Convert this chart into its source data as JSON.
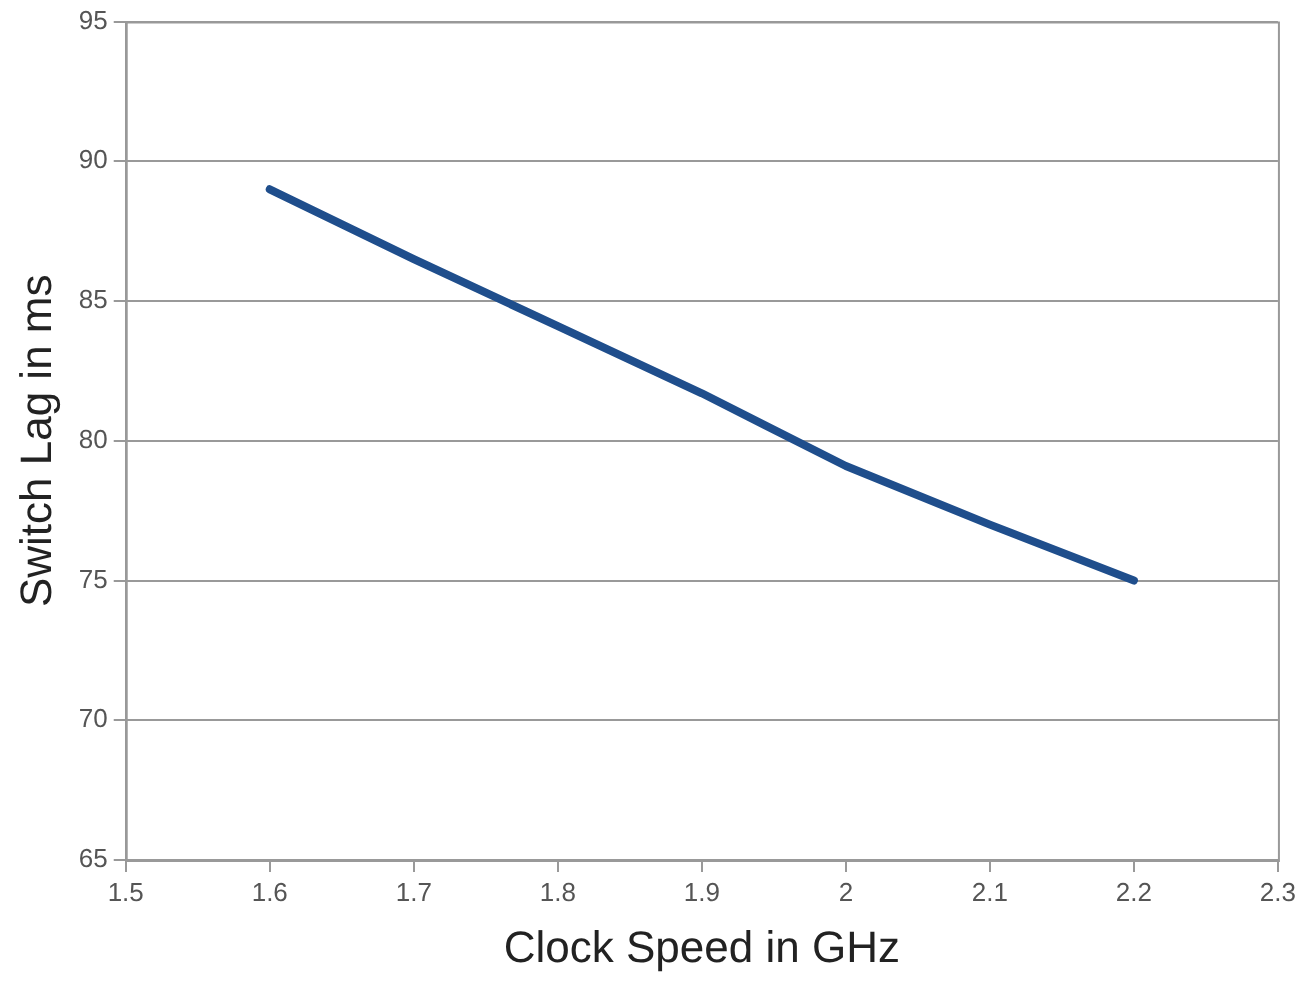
{
  "chart_data": {
    "type": "line",
    "xlabel": "Clock Speed in GHz",
    "ylabel": "Switch Lag in ms",
    "x": [
      1.6,
      1.7,
      1.8,
      1.9,
      2.0,
      2.1,
      2.2
    ],
    "series": [
      {
        "color": "#1f4e8c",
        "values": [
          89,
          86.5,
          84.1,
          81.7,
          79.1,
          77.0,
          75
        ]
      }
    ],
    "xlim": [
      1.5,
      2.3
    ],
    "xticks": [
      1.5,
      1.6,
      1.7,
      1.8,
      1.9,
      {
        "value": 2,
        "label": "2"
      },
      2.1,
      2.2,
      2.3
    ],
    "ylim": [
      65,
      95
    ],
    "yticks": [
      65,
      70,
      75,
      80,
      85,
      90,
      95
    ],
    "grid": "y",
    "legend": false,
    "marker": "none",
    "line_style": "solid"
  }
}
